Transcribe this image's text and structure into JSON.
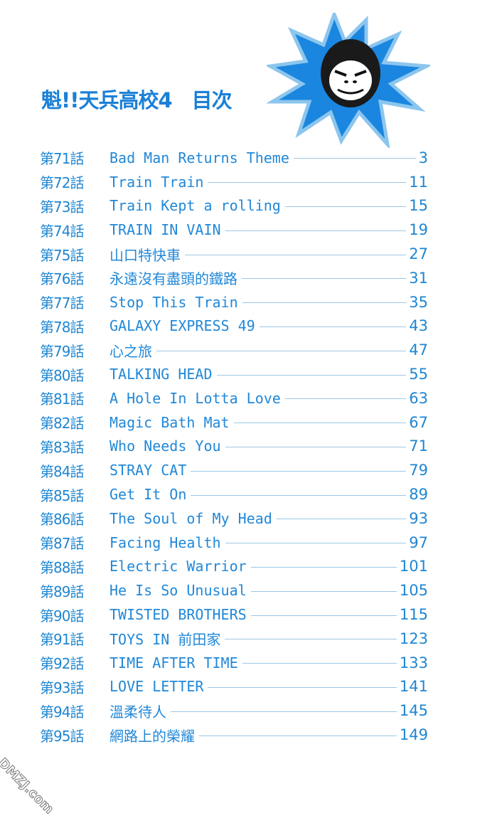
{
  "header": {
    "title": "魁!!天兵高校4　目次",
    "mascot_icon": "gorilla-starburst-icon"
  },
  "colors": {
    "text": "#1a7fd0",
    "burst": "#1a86e0",
    "burst_outline": "#8cc6ee"
  },
  "entries": [
    {
      "chapter": "第71話",
      "title": "Bad Man Returns Theme",
      "page": "3"
    },
    {
      "chapter": "第72話",
      "title": "Train Train",
      "page": "11"
    },
    {
      "chapter": "第73話",
      "title": "Train Kept a rolling",
      "page": "15"
    },
    {
      "chapter": "第74話",
      "title": "TRAIN IN VAIN",
      "page": "19"
    },
    {
      "chapter": "第75話",
      "title": "山口特快車",
      "page": "27"
    },
    {
      "chapter": "第76話",
      "title": "永遠沒有盡頭的鐵路",
      "page": "31"
    },
    {
      "chapter": "第77話",
      "title": "Stop This Train",
      "page": "35"
    },
    {
      "chapter": "第78話",
      "title": "GALAXY EXPRESS 49",
      "page": "43"
    },
    {
      "chapter": "第79話",
      "title": "心之旅",
      "page": "47"
    },
    {
      "chapter": "第80話",
      "title": "TALKING HEAD",
      "page": "55"
    },
    {
      "chapter": "第81話",
      "title": "A Hole In Lotta Love",
      "page": "63"
    },
    {
      "chapter": "第82話",
      "title": "Magic Bath Mat",
      "page": "67"
    },
    {
      "chapter": "第83話",
      "title": "Who Needs You",
      "page": "71"
    },
    {
      "chapter": "第84話",
      "title": "STRAY CAT",
      "page": "79"
    },
    {
      "chapter": "第85話",
      "title": "Get It On",
      "page": "89"
    },
    {
      "chapter": "第86話",
      "title": "The Soul of My Head",
      "page": "93"
    },
    {
      "chapter": "第87話",
      "title": "Facing Health",
      "page": "97"
    },
    {
      "chapter": "第88話",
      "title": "Electric Warrior",
      "page": "101"
    },
    {
      "chapter": "第89話",
      "title": "He Is So Unusual",
      "page": "105"
    },
    {
      "chapter": "第90話",
      "title": "TWISTED BROTHERS",
      "page": "115"
    },
    {
      "chapter": "第91話",
      "title": "TOYS IN 前田家",
      "page": "123"
    },
    {
      "chapter": "第92話",
      "title": "TIME AFTER TIME",
      "page": "133"
    },
    {
      "chapter": "第93話",
      "title": "LOVE LETTER",
      "page": "141"
    },
    {
      "chapter": "第94話",
      "title": "溫柔待人",
      "page": "145"
    },
    {
      "chapter": "第95話",
      "title": "網路上的榮耀",
      "page": "149"
    }
  ],
  "watermark": "DMZJ.com"
}
